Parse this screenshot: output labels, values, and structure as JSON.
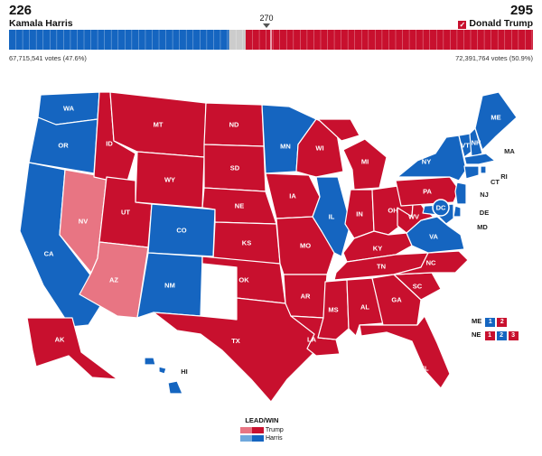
{
  "header": {
    "harris": {
      "ev": "226",
      "name": "Kamala Harris",
      "votes": "67,715,541 votes (47.6%)"
    },
    "trump": {
      "ev": "295",
      "name": "Donald Trump",
      "votes": "72,391,764 votes (50.9%)",
      "check": "✓"
    },
    "threshold": "270"
  },
  "colors": {
    "trump_win": "#c8102e",
    "trump_lead": "#e87583",
    "harris_win": "#1565c0",
    "harris_lead": "#6fa8dc",
    "undecided": "#cccccc"
  },
  "bar": {
    "total": 538,
    "harris": 226,
    "trump": 295,
    "undecided": 17
  },
  "states": [
    {
      "abbr": "WA",
      "winner": "harris"
    },
    {
      "abbr": "OR",
      "winner": "harris"
    },
    {
      "abbr": "CA",
      "winner": "harris"
    },
    {
      "abbr": "NV",
      "winner": "trump_lead"
    },
    {
      "abbr": "ID",
      "winner": "trump"
    },
    {
      "abbr": "MT",
      "winner": "trump"
    },
    {
      "abbr": "WY",
      "winner": "trump"
    },
    {
      "abbr": "UT",
      "winner": "trump"
    },
    {
      "abbr": "AZ",
      "winner": "trump_lead"
    },
    {
      "abbr": "CO",
      "winner": "harris"
    },
    {
      "abbr": "NM",
      "winner": "harris"
    },
    {
      "abbr": "ND",
      "winner": "trump"
    },
    {
      "abbr": "SD",
      "winner": "trump"
    },
    {
      "abbr": "NE",
      "winner": "trump"
    },
    {
      "abbr": "KS",
      "winner": "trump"
    },
    {
      "abbr": "OK",
      "winner": "trump"
    },
    {
      "abbr": "TX",
      "winner": "trump"
    },
    {
      "abbr": "MN",
      "winner": "harris"
    },
    {
      "abbr": "IA",
      "winner": "trump"
    },
    {
      "abbr": "MO",
      "winner": "trump"
    },
    {
      "abbr": "AR",
      "winner": "trump"
    },
    {
      "abbr": "LA",
      "winner": "trump"
    },
    {
      "abbr": "WI",
      "winner": "trump"
    },
    {
      "abbr": "IL",
      "winner": "harris"
    },
    {
      "abbr": "MI",
      "winner": "trump"
    },
    {
      "abbr": "IN",
      "winner": "trump"
    },
    {
      "abbr": "OH",
      "winner": "trump"
    },
    {
      "abbr": "KY",
      "winner": "trump"
    },
    {
      "abbr": "TN",
      "winner": "trump"
    },
    {
      "abbr": "MS",
      "winner": "trump"
    },
    {
      "abbr": "AL",
      "winner": "trump"
    },
    {
      "abbr": "GA",
      "winner": "trump"
    },
    {
      "abbr": "FL",
      "winner": "trump"
    },
    {
      "abbr": "SC",
      "winner": "trump"
    },
    {
      "abbr": "NC",
      "winner": "trump"
    },
    {
      "abbr": "VA",
      "winner": "harris"
    },
    {
      "abbr": "WV",
      "winner": "trump"
    },
    {
      "abbr": "PA",
      "winner": "trump"
    },
    {
      "abbr": "NY",
      "winner": "harris"
    },
    {
      "abbr": "VT",
      "winner": "harris"
    },
    {
      "abbr": "NH",
      "winner": "harris"
    },
    {
      "abbr": "ME",
      "winner": "harris"
    },
    {
      "abbr": "MA",
      "winner": "harris"
    },
    {
      "abbr": "RI",
      "winner": "harris"
    },
    {
      "abbr": "CT",
      "winner": "harris"
    },
    {
      "abbr": "NJ",
      "winner": "harris"
    },
    {
      "abbr": "DE",
      "winner": "harris"
    },
    {
      "abbr": "MD",
      "winner": "harris"
    },
    {
      "abbr": "DC",
      "winner": "harris"
    },
    {
      "abbr": "AK",
      "winner": "trump"
    },
    {
      "abbr": "HI",
      "winner": "harris"
    }
  ],
  "splits": {
    "me": {
      "label": "ME",
      "d1": "1",
      "d2": "2"
    },
    "ne": {
      "label": "NE",
      "d1": "1",
      "d2": "2",
      "d3": "3"
    }
  },
  "legend": {
    "title": "LEAD/WIN",
    "trump": "Trump",
    "harris": "Harris"
  }
}
